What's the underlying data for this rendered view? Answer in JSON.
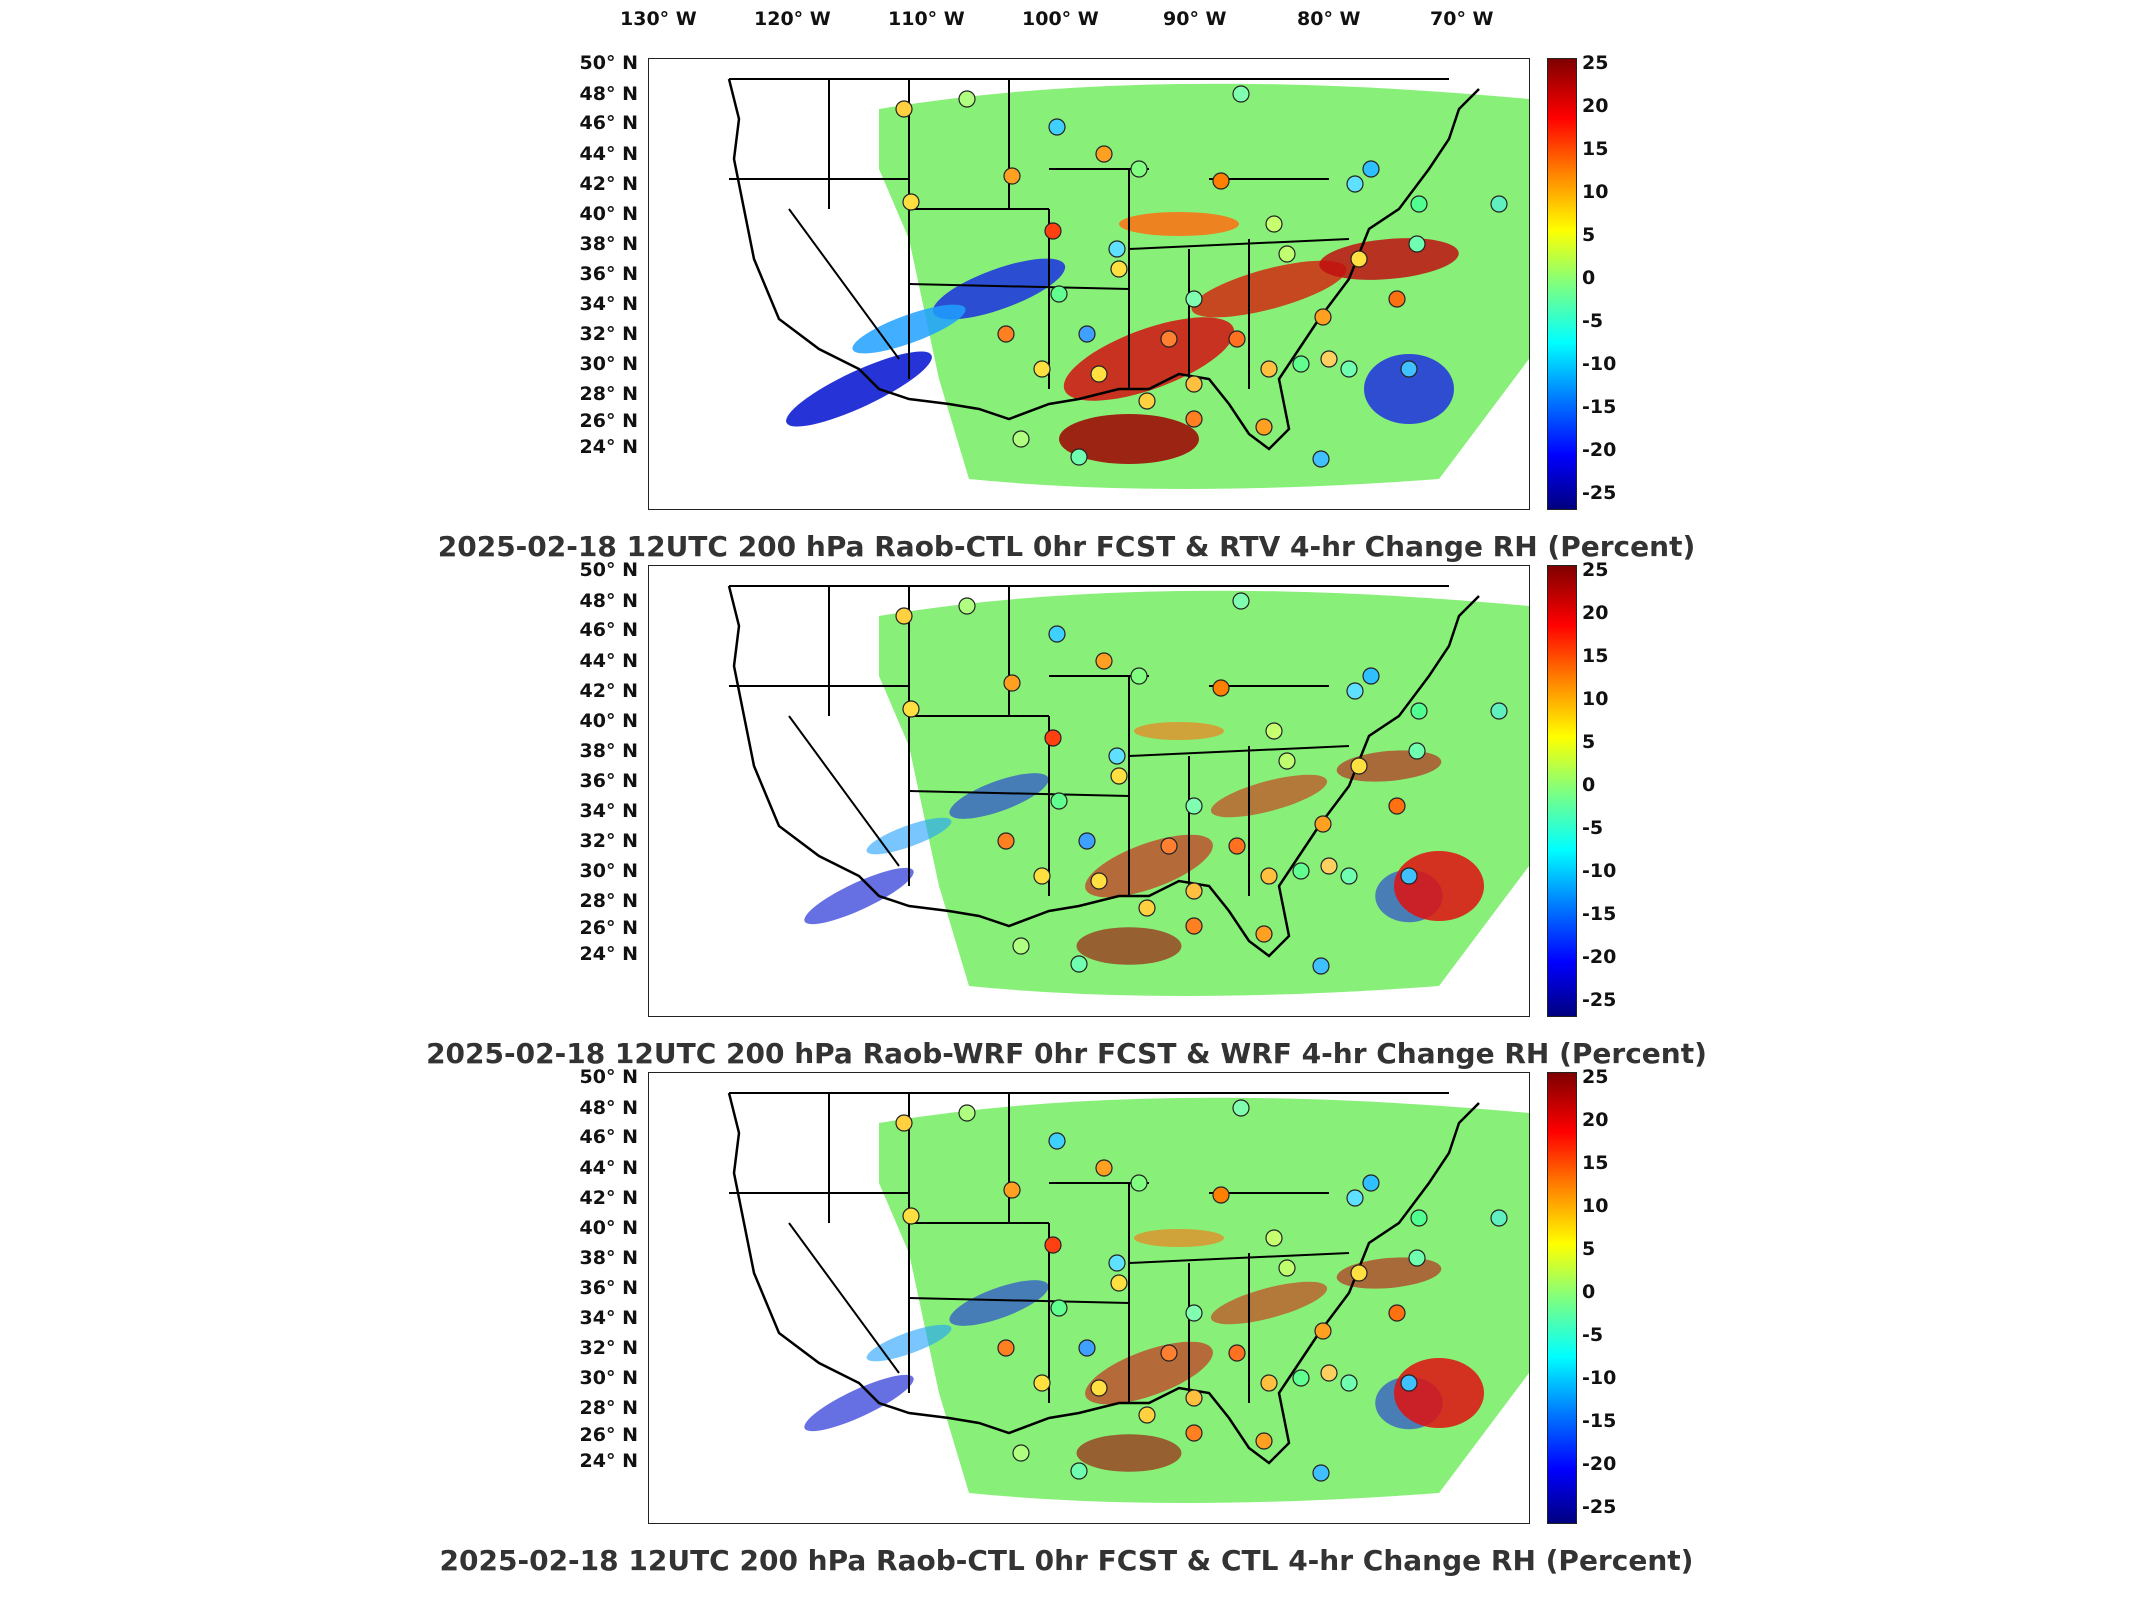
{
  "longitude_labels": [
    "130° W",
    "120° W",
    "110° W",
    "100° W",
    "90° W",
    "80° W",
    "70° W"
  ],
  "latitude_labels": [
    "50° N",
    "48° N",
    "46° N",
    "44° N",
    "42° N",
    "40° N",
    "38° N",
    "36° N",
    "34° N",
    "32° N",
    "30° N",
    "28° N",
    "26° N",
    "24° N"
  ],
  "colorbar_ticks": [
    "25",
    "20",
    "15",
    "10",
    "5",
    "0",
    "-5",
    "-10",
    "-15",
    "-20",
    "-25"
  ],
  "colorbar_range": [
    -25,
    25
  ],
  "colormap": [
    "#00007f",
    "#0000ff",
    "#007fff",
    "#00ffff",
    "#7fff7f",
    "#ffff00",
    "#ff7f00",
    "#ff0000",
    "#7f0000"
  ],
  "panels": [
    {
      "title": "2025-02-18 12UTC 200 hPa Raob-CTL 0hr FCST & RTV 4-hr Change RH (Percent)"
    },
    {
      "title": "2025-02-18 12UTC 200 hPa Raob-WRF 0hr FCST & WRF 4-hr Change RH (Percent)"
    },
    {
      "title": "2025-02-18 12UTC 200 hPa Raob-CTL 0hr FCST & CTL 4-hr Change RH (Percent)"
    }
  ]
}
